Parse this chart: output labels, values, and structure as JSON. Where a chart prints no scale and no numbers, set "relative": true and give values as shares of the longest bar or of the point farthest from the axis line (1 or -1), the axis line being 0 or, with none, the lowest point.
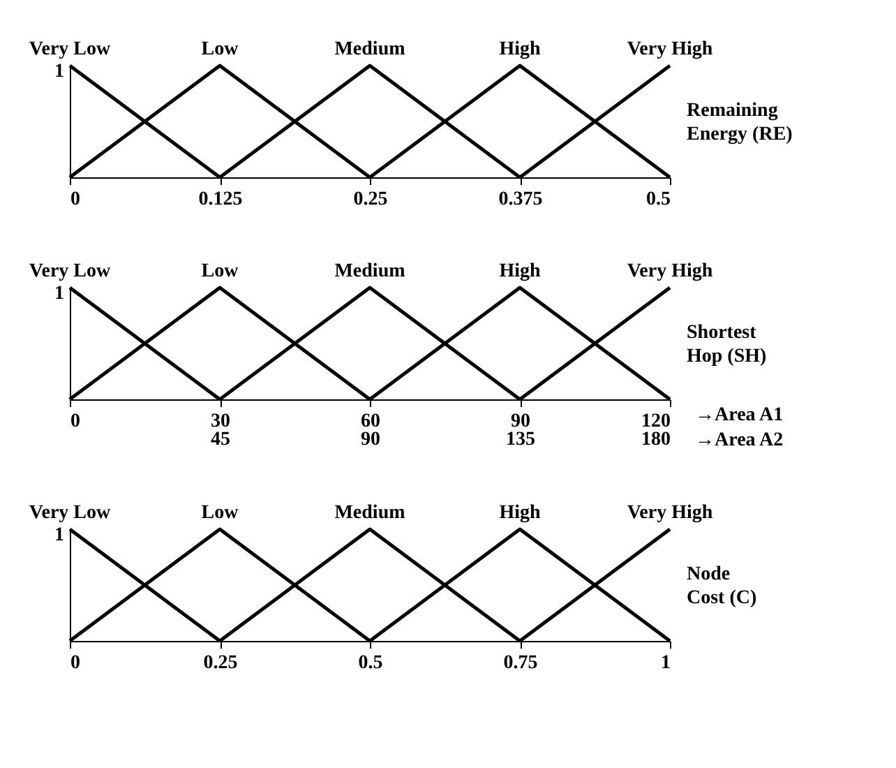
{
  "chart_data": [
    {
      "type": "line",
      "relative": true,
      "x": [
        0,
        0.125,
        0.25,
        0.375,
        0.5
      ],
      "xlim": [
        0,
        0.5
      ],
      "xticks": [
        0,
        0.125,
        0.25,
        0.375,
        0.5
      ],
      "grid": false,
      "marker": "none",
      "line_style": "solid",
      "annotations": [
        "1",
        "Remaining Energy (RE)"
      ],
      "series": [
        {
          "name": "Very Low",
          "color": "#000000",
          "values": [
            1,
            0,
            null,
            null,
            null
          ]
        },
        {
          "name": "Low",
          "color": "#000000",
          "values": [
            0,
            1,
            0,
            null,
            null
          ]
        },
        {
          "name": "Medium",
          "color": "#000000",
          "values": [
            null,
            0,
            1,
            0,
            null
          ]
        },
        {
          "name": "High",
          "color": "#000000",
          "values": [
            null,
            null,
            0,
            1,
            0
          ]
        },
        {
          "name": "Very High",
          "color": "#000000",
          "values": [
            null,
            null,
            null,
            0,
            1
          ]
        }
      ]
    },
    {
      "type": "line",
      "relative": true,
      "x": [
        0,
        30,
        60,
        90,
        120
      ],
      "xlim": [
        0,
        120
      ],
      "xticks": [
        0,
        30,
        60,
        90,
        120
      ],
      "x2lim": [
        0,
        180
      ],
      "x2ticks": [
        45,
        90,
        135,
        180
      ],
      "grid": false,
      "marker": "none",
      "line_style": "solid",
      "annotations": [
        "1",
        "Shortest Hop (SH)",
        "→Area A1",
        "→Area A2"
      ],
      "series": [
        {
          "name": "Very Low",
          "color": "#000000",
          "values": [
            1,
            0,
            null,
            null,
            null
          ]
        },
        {
          "name": "Low",
          "color": "#000000",
          "values": [
            0,
            1,
            0,
            null,
            null
          ]
        },
        {
          "name": "Medium",
          "color": "#000000",
          "values": [
            null,
            0,
            1,
            0,
            null
          ]
        },
        {
          "name": "High",
          "color": "#000000",
          "values": [
            null,
            null,
            0,
            1,
            0
          ]
        },
        {
          "name": "Very High",
          "color": "#000000",
          "values": [
            null,
            null,
            null,
            0,
            1
          ]
        }
      ]
    },
    {
      "type": "line",
      "relative": true,
      "x": [
        0,
        0.25,
        0.5,
        0.75,
        1
      ],
      "xlim": [
        0,
        1
      ],
      "xticks": [
        0,
        0.25,
        0.5,
        0.75,
        1
      ],
      "grid": false,
      "marker": "none",
      "line_style": "solid",
      "annotations": [
        "1",
        "Node Cost (C)"
      ],
      "series": [
        {
          "name": "Very Low",
          "color": "#000000",
          "values": [
            1,
            0,
            null,
            null,
            null
          ]
        },
        {
          "name": "Low",
          "color": "#000000",
          "values": [
            0,
            1,
            0,
            null,
            null
          ]
        },
        {
          "name": "Medium",
          "color": "#000000",
          "values": [
            null,
            0,
            1,
            0,
            null
          ]
        },
        {
          "name": "High",
          "color": "#000000",
          "values": [
            null,
            null,
            0,
            1,
            0
          ]
        },
        {
          "name": "Very High",
          "color": "#000000",
          "values": [
            null,
            null,
            null,
            0,
            1
          ]
        }
      ]
    }
  ]
}
